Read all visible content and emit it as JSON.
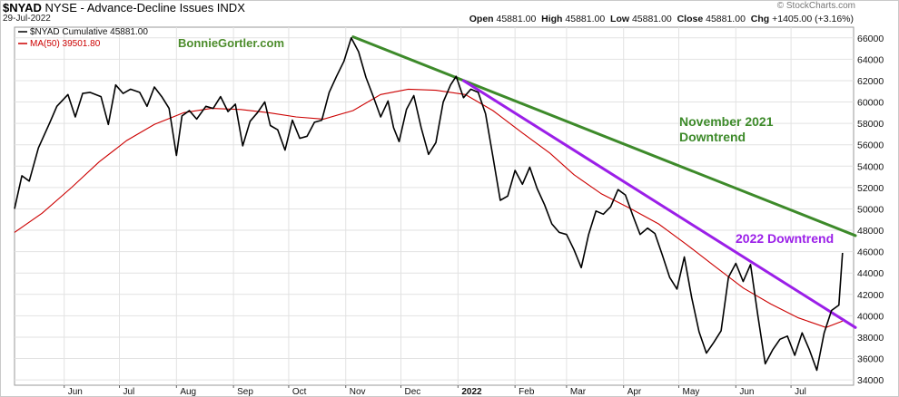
{
  "header": {
    "symbol": "$NYAD",
    "description": "NYSE - Advance-Decline Issues  INDX",
    "date": "29-Jul-2022",
    "open_label": "Open",
    "open": "45881.00",
    "high_label": "High",
    "high": "45881.00",
    "low_label": "Low",
    "low": "45881.00",
    "close_label": "Close",
    "close": "45881.00",
    "chg_label": "Chg",
    "chg": "+1405.00 (+3.16%)",
    "brand": "© StockCharts.com"
  },
  "colors": {
    "price": "#000000",
    "ma": "#cc0000",
    "nov_trend": "#3d8a2a",
    "trend_2022": "#9b1fe8",
    "grid": "#e2e2e2",
    "plot_bg": "#ffffff"
  },
  "chart_data": {
    "type": "line",
    "title": "$NYAD NYSE - Advance-Decline Issues INDX",
    "ylim": [
      33500,
      67000
    ],
    "y_ticks": [
      34000,
      36000,
      38000,
      40000,
      42000,
      44000,
      46000,
      48000,
      50000,
      52000,
      54000,
      56000,
      58000,
      60000,
      62000,
      64000,
      66000
    ],
    "y_tick_labels": [
      "34000",
      "36000",
      "38000",
      "40000",
      "42000",
      "44000",
      "46000",
      "48000",
      "50000",
      "52000",
      "54000",
      "56000",
      "58000",
      "60000",
      "62000",
      "64000",
      "66000"
    ],
    "x_range": [
      "2021-05-05",
      "2022-08-04"
    ],
    "x_ticks": [
      {
        "date": "2021-06-01",
        "label": "Jun",
        "bold": false
      },
      {
        "date": "2021-07-01",
        "label": "Jul",
        "bold": false
      },
      {
        "date": "2021-08-01",
        "label": "Aug",
        "bold": false
      },
      {
        "date": "2021-09-01",
        "label": "Sep",
        "bold": false
      },
      {
        "date": "2021-10-01",
        "label": "Oct",
        "bold": false
      },
      {
        "date": "2021-11-01",
        "label": "Nov",
        "bold": false
      },
      {
        "date": "2021-12-01",
        "label": "Dec",
        "bold": false
      },
      {
        "date": "2022-01-01",
        "label": "2022",
        "bold": true
      },
      {
        "date": "2022-02-01",
        "label": "Feb",
        "bold": false
      },
      {
        "date": "2022-03-01",
        "label": "Mar",
        "bold": false
      },
      {
        "date": "2022-04-01",
        "label": "Apr",
        "bold": false
      },
      {
        "date": "2022-05-01",
        "label": "May",
        "bold": false
      },
      {
        "date": "2022-06-01",
        "label": "Jun",
        "bold": false
      },
      {
        "date": "2022-07-01",
        "label": "Jul",
        "bold": false
      }
    ],
    "legend": [
      {
        "label": "$NYAD Cumulative 45881.00",
        "color": "#000000"
      },
      {
        "label": "MA(50) 39501.80",
        "color": "#cc0000"
      }
    ],
    "legend_placement": "top-left",
    "grid": true,
    "series": [
      {
        "name": "$NYAD Cumulative",
        "color": "#000000",
        "points": [
          [
            "2021-05-05",
            50000
          ],
          [
            "2021-05-09",
            53100
          ],
          [
            "2021-05-13",
            52600
          ],
          [
            "2021-05-18",
            55700
          ],
          [
            "2021-05-24",
            58000
          ],
          [
            "2021-05-28",
            59600
          ],
          [
            "2021-06-03",
            60700
          ],
          [
            "2021-06-07",
            58600
          ],
          [
            "2021-06-11",
            60800
          ],
          [
            "2021-06-15",
            60900
          ],
          [
            "2021-06-21",
            60500
          ],
          [
            "2021-06-25",
            57900
          ],
          [
            "2021-06-29",
            61600
          ],
          [
            "2021-07-03",
            60800
          ],
          [
            "2021-07-07",
            61200
          ],
          [
            "2021-07-12",
            60900
          ],
          [
            "2021-07-16",
            59600
          ],
          [
            "2021-07-20",
            61400
          ],
          [
            "2021-07-24",
            60500
          ],
          [
            "2021-07-28",
            59400
          ],
          [
            "2021-08-01",
            55000
          ],
          [
            "2021-08-04",
            58700
          ],
          [
            "2021-08-08",
            59200
          ],
          [
            "2021-08-12",
            58400
          ],
          [
            "2021-08-17",
            59600
          ],
          [
            "2021-08-21",
            59400
          ],
          [
            "2021-08-25",
            60500
          ],
          [
            "2021-08-29",
            59100
          ],
          [
            "2021-09-02",
            59800
          ],
          [
            "2021-09-06",
            55900
          ],
          [
            "2021-09-10",
            58200
          ],
          [
            "2021-09-14",
            59000
          ],
          [
            "2021-09-18",
            60000
          ],
          [
            "2021-09-21",
            57800
          ],
          [
            "2021-09-25",
            57400
          ],
          [
            "2021-09-29",
            55500
          ],
          [
            "2021-10-03",
            58300
          ],
          [
            "2021-10-07",
            56600
          ],
          [
            "2021-10-11",
            56800
          ],
          [
            "2021-10-15",
            58100
          ],
          [
            "2021-10-19",
            58300
          ],
          [
            "2021-10-23",
            60900
          ],
          [
            "2021-10-27",
            62400
          ],
          [
            "2021-10-31",
            63800
          ],
          [
            "2021-11-04",
            66000
          ],
          [
            "2021-11-08",
            64700
          ],
          [
            "2021-11-12",
            62300
          ],
          [
            "2021-11-16",
            60500
          ],
          [
            "2021-11-20",
            58600
          ],
          [
            "2021-11-24",
            60100
          ],
          [
            "2021-11-27",
            57600
          ],
          [
            "2021-11-30",
            56300
          ],
          [
            "2021-12-04",
            59300
          ],
          [
            "2021-12-08",
            60600
          ],
          [
            "2021-12-12",
            57600
          ],
          [
            "2021-12-16",
            55100
          ],
          [
            "2021-12-20",
            56200
          ],
          [
            "2021-12-24",
            60000
          ],
          [
            "2021-12-28",
            61600
          ],
          [
            "2021-12-31",
            62400
          ],
          [
            "2022-01-04",
            60400
          ],
          [
            "2022-01-08",
            61200
          ],
          [
            "2022-01-12",
            60900
          ],
          [
            "2022-01-16",
            58900
          ],
          [
            "2022-01-20",
            54900
          ],
          [
            "2022-01-24",
            50800
          ],
          [
            "2022-01-28",
            51200
          ],
          [
            "2022-02-01",
            53600
          ],
          [
            "2022-02-05",
            52300
          ],
          [
            "2022-02-09",
            53900
          ],
          [
            "2022-02-13",
            51900
          ],
          [
            "2022-02-17",
            50400
          ],
          [
            "2022-02-21",
            48600
          ],
          [
            "2022-02-25",
            47800
          ],
          [
            "2022-03-01",
            47600
          ],
          [
            "2022-03-05",
            46200
          ],
          [
            "2022-03-09",
            44500
          ],
          [
            "2022-03-13",
            47600
          ],
          [
            "2022-03-17",
            49800
          ],
          [
            "2022-03-21",
            49500
          ],
          [
            "2022-03-25",
            50200
          ],
          [
            "2022-03-29",
            51800
          ],
          [
            "2022-04-02",
            51300
          ],
          [
            "2022-04-06",
            49400
          ],
          [
            "2022-04-10",
            47600
          ],
          [
            "2022-04-14",
            48200
          ],
          [
            "2022-04-18",
            47700
          ],
          [
            "2022-04-22",
            45700
          ],
          [
            "2022-04-26",
            43600
          ],
          [
            "2022-04-30",
            42500
          ],
          [
            "2022-05-04",
            45500
          ],
          [
            "2022-05-08",
            41700
          ],
          [
            "2022-05-12",
            38500
          ],
          [
            "2022-05-16",
            36500
          ],
          [
            "2022-05-20",
            37500
          ],
          [
            "2022-05-24",
            38600
          ],
          [
            "2022-05-28",
            43600
          ],
          [
            "2022-06-01",
            44900
          ],
          [
            "2022-06-05",
            43200
          ],
          [
            "2022-06-09",
            44800
          ],
          [
            "2022-06-13",
            40000
          ],
          [
            "2022-06-17",
            35500
          ],
          [
            "2022-06-21",
            36800
          ],
          [
            "2022-06-25",
            37800
          ],
          [
            "2022-06-29",
            38100
          ],
          [
            "2022-07-03",
            36300
          ],
          [
            "2022-07-07",
            38400
          ],
          [
            "2022-07-11",
            36800
          ],
          [
            "2022-07-15",
            34900
          ],
          [
            "2022-07-19",
            38400
          ],
          [
            "2022-07-23",
            40500
          ],
          [
            "2022-07-27",
            41000
          ],
          [
            "2022-07-29",
            45881
          ]
        ]
      },
      {
        "name": "MA(50)",
        "color": "#cc0000",
        "points": [
          [
            "2021-05-05",
            47800
          ],
          [
            "2021-05-20",
            49600
          ],
          [
            "2021-06-05",
            52000
          ],
          [
            "2021-06-20",
            54400
          ],
          [
            "2021-07-05",
            56400
          ],
          [
            "2021-07-20",
            57900
          ],
          [
            "2021-08-05",
            59000
          ],
          [
            "2021-08-20",
            59400
          ],
          [
            "2021-09-05",
            59300
          ],
          [
            "2021-09-20",
            59000
          ],
          [
            "2021-10-05",
            58600
          ],
          [
            "2021-10-20",
            58400
          ],
          [
            "2021-11-05",
            59200
          ],
          [
            "2021-11-20",
            60700
          ],
          [
            "2021-12-05",
            61200
          ],
          [
            "2021-12-20",
            61100
          ],
          [
            "2022-01-05",
            60700
          ],
          [
            "2022-01-20",
            59200
          ],
          [
            "2022-02-05",
            57100
          ],
          [
            "2022-02-20",
            55200
          ],
          [
            "2022-03-05",
            53200
          ],
          [
            "2022-03-20",
            51400
          ],
          [
            "2022-04-05",
            50000
          ],
          [
            "2022-04-20",
            48600
          ],
          [
            "2022-05-05",
            46700
          ],
          [
            "2022-05-20",
            44700
          ],
          [
            "2022-06-05",
            42600
          ],
          [
            "2022-06-20",
            41100
          ],
          [
            "2022-07-05",
            39800
          ],
          [
            "2022-07-20",
            38900
          ],
          [
            "2022-07-29",
            39501.8
          ]
        ]
      }
    ],
    "annotations": [
      {
        "type": "trendline",
        "label": "November 2021 Downtrend",
        "color": "#3d8a2a",
        "from": [
          "2021-11-05",
          66100
        ],
        "to": [
          "2022-08-05",
          47500
        ]
      },
      {
        "type": "trendline",
        "label": "2022 Downtrend",
        "color": "#9b1fe8",
        "from": [
          "2022-01-04",
          62000
        ],
        "to": [
          "2022-08-05",
          38900
        ]
      },
      {
        "type": "text",
        "text": "BonnieGortler.com",
        "color": "#4c8c2b"
      },
      {
        "type": "text",
        "text": "November 2021",
        "color": "#3d8a2a"
      },
      {
        "type": "text",
        "text": "Downtrend",
        "color": "#3d8a2a"
      },
      {
        "type": "text",
        "text": "2022 Downtrend",
        "color": "#9b1fe8"
      }
    ]
  }
}
